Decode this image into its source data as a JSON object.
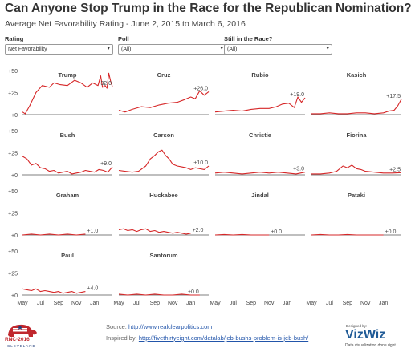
{
  "header": {
    "title": "Can Anyone Stop Trump in the Race for the Republican Nomination?",
    "subtitle": "Average Net Favorability Rating - June 2, 2015 to March 6, 2016"
  },
  "filters": [
    {
      "label": "Rating",
      "value": "Net Favorability"
    },
    {
      "label": "Poll",
      "value": "(All)"
    },
    {
      "label": "Still in the Race?",
      "value": "(All)"
    }
  ],
  "footer": {
    "source_label": "Source: ",
    "source_link": "http://www.realclearpolitics.com",
    "inspired_label": "Inspired by: ",
    "inspired_link": "http://fivethirtyeight.com/datalab/jeb-bushs-problem-is-jeb-bush/",
    "rnc_text": "RNC·2016",
    "rnc_city": "CLEVELAND",
    "designed_by": "Designed by:",
    "brand": "VizWiz",
    "tagline": "Data visualization done right."
  },
  "colors": {
    "line": "#d62728",
    "axis": "#555555",
    "grid": "#e6e6e6",
    "label": "#444444",
    "brand": "#1f5a96",
    "link": "#2255aa"
  },
  "chart_data": {
    "type": "line",
    "layout": "small-multiples",
    "y_ticks": [
      "+50",
      "+25",
      "+0"
    ],
    "y_tick_values": [
      50,
      25,
      0
    ],
    "ylim": [
      0,
      50
    ],
    "x_ticks": [
      "May",
      "Jul",
      "Sep",
      "Nov",
      "Jan"
    ],
    "x_tick_positions": [
      0,
      2,
      4,
      6,
      8
    ],
    "xlim": [
      0,
      10
    ],
    "panels": [
      {
        "name": "Trump",
        "end_label": "32.0",
        "x": [
          0,
          0.3,
          0.8,
          1.5,
          2.2,
          3,
          3.5,
          4.2,
          5,
          5.8,
          6.5,
          7.2,
          7.8,
          8.4,
          8.7,
          8.9,
          9.2,
          9.4,
          9.6,
          9.8,
          10
        ],
        "values": [
          3,
          1,
          10,
          25,
          33,
          31,
          36,
          34,
          33,
          39,
          36,
          31,
          36,
          33,
          44,
          31,
          33,
          30,
          47,
          38,
          32
        ]
      },
      {
        "name": "Cruz",
        "end_label": "+26.0",
        "x": [
          0,
          0.7,
          1.5,
          2.5,
          3.5,
          4.5,
          5.5,
          6.5,
          7.3,
          8,
          8.5,
          9,
          9.5,
          10
        ],
        "values": [
          5,
          3,
          6,
          9,
          8,
          11,
          13,
          14,
          17,
          20,
          18,
          27,
          22,
          26
        ]
      },
      {
        "name": "Rubio",
        "end_label": "+19.0",
        "x": [
          0,
          1,
          2,
          3,
          4,
          5,
          6,
          6.8,
          7.5,
          8.2,
          8.8,
          9.2,
          9.6,
          10
        ],
        "values": [
          3,
          4,
          5,
          4,
          6,
          7,
          7,
          9,
          12,
          13,
          8,
          20,
          14,
          19
        ]
      },
      {
        "name": "Kasich",
        "end_label": "+17.5",
        "x": [
          0,
          1,
          2,
          3,
          4,
          5,
          6,
          7,
          8,
          8.6,
          9.2,
          9.6,
          10
        ],
        "values": [
          1,
          1,
          2,
          1,
          1,
          2,
          2,
          1,
          2,
          4,
          5,
          10,
          17.5
        ]
      },
      {
        "name": "Bush",
        "end_label": "+9.0",
        "x": [
          0,
          0.5,
          1,
          1.5,
          2,
          2.5,
          3,
          3.5,
          4,
          4.5,
          5,
          5.5,
          6,
          6.5,
          7,
          7.5,
          8,
          8.5,
          9,
          9.5,
          10
        ],
        "values": [
          21,
          18,
          11,
          13,
          8,
          7,
          4,
          5,
          2,
          3,
          4,
          1,
          2,
          3,
          5,
          4,
          3,
          6,
          5,
          3,
          9
        ]
      },
      {
        "name": "Carson",
        "end_label": "+10.0",
        "x": [
          0,
          0.7,
          1.5,
          2.2,
          3,
          3.5,
          4,
          4.4,
          4.8,
          5.2,
          5.6,
          6,
          6.5,
          7,
          7.5,
          8,
          8.5,
          9,
          9.5,
          10
        ],
        "values": [
          5,
          4,
          3,
          4,
          10,
          18,
          22,
          26,
          28,
          22,
          18,
          12,
          10,
          9,
          8,
          6,
          8,
          7,
          6,
          10
        ]
      },
      {
        "name": "Christie",
        "end_label": "+3.0",
        "x": [
          0,
          1,
          2,
          3,
          4,
          5,
          6,
          7,
          8,
          9,
          10
        ],
        "values": [
          2,
          3,
          2,
          1,
          2,
          3,
          2,
          3,
          2,
          1,
          3
        ]
      },
      {
        "name": "Fiorina",
        "end_label": "+2.5",
        "x": [
          0,
          1,
          2,
          2.8,
          3.5,
          4,
          4.5,
          5,
          5.5,
          6,
          7,
          8,
          9,
          10
        ],
        "values": [
          1,
          1,
          2,
          4,
          10,
          8,
          11,
          7,
          6,
          4,
          3,
          2,
          2,
          2.5
        ]
      },
      {
        "name": "Graham",
        "end_label": "+1.0",
        "x": [
          0,
          1,
          2,
          3,
          4,
          5,
          6,
          7
        ],
        "values": [
          0,
          1,
          0,
          1,
          0,
          1,
          0,
          1
        ]
      },
      {
        "name": "Huckabee",
        "end_label": "+2.0",
        "x": [
          0,
          0.5,
          1,
          1.5,
          2,
          2.5,
          3,
          3.5,
          4,
          4.5,
          5,
          5.5,
          6,
          6.5,
          7,
          7.5,
          8
        ],
        "values": [
          6,
          7,
          5,
          6,
          4,
          6,
          7,
          4,
          5,
          3,
          4,
          3,
          2,
          3,
          2,
          1,
          2
        ]
      },
      {
        "name": "Jindal",
        "end_label": "+0.0",
        "x": [
          0,
          1,
          2,
          3,
          4,
          5,
          6
        ],
        "values": [
          0,
          0.5,
          0,
          0.5,
          0,
          0,
          0
        ]
      },
      {
        "name": "Pataki",
        "end_label": "+0.0",
        "x": [
          0,
          1,
          2,
          3,
          4,
          5,
          6,
          7,
          8
        ],
        "values": [
          0,
          0.5,
          0,
          0,
          0.5,
          0,
          0,
          0,
          0
        ]
      },
      {
        "name": "Paul",
        "end_label": "+4.0",
        "x": [
          0,
          0.5,
          1,
          1.5,
          2,
          2.5,
          3,
          3.5,
          4,
          4.5,
          5,
          5.5,
          6,
          6.5,
          7
        ],
        "values": [
          7,
          6,
          5,
          7,
          4,
          5,
          4,
          3,
          4,
          2,
          3,
          4,
          2,
          3,
          4
        ]
      },
      {
        "name": "Santorum",
        "end_label": "+0.0",
        "x": [
          0,
          1,
          2,
          3,
          4,
          5,
          6,
          7,
          8,
          9
        ],
        "values": [
          1,
          0,
          1,
          0,
          1,
          0,
          0,
          1,
          0,
          0
        ]
      }
    ]
  }
}
